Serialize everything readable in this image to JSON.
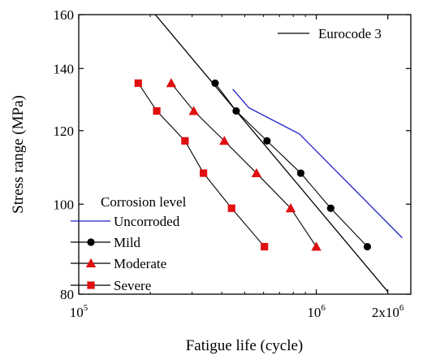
{
  "chart_data": {
    "type": "line",
    "xlabel": "Fatigue life (cycle)",
    "ylabel": "Stress range (MPa)",
    "x_scale": "log",
    "y_scale": "log",
    "xlim": [
      100000,
      2500000
    ],
    "ylim": [
      80,
      160
    ],
    "x_ticks": [
      {
        "value": 100000,
        "base": "10",
        "exp": "5"
      },
      {
        "value": 1000000,
        "base": "10",
        "exp": "6"
      },
      {
        "value": 2000000,
        "base": "2x10",
        "exp": "6"
      }
    ],
    "y_ticks": [
      {
        "value": 80,
        "label": "80"
      },
      {
        "value": 100,
        "label": "100"
      },
      {
        "value": 120,
        "label": "120"
      },
      {
        "value": 140,
        "label": "140"
      },
      {
        "value": 160,
        "label": "160"
      }
    ],
    "legend_title": "Corrosion level",
    "series": [
      {
        "name": "Eurocode 3",
        "color": "#000000",
        "marker": "none",
        "x": [
          210000,
          2000000
        ],
        "y": [
          160,
          80.5
        ]
      },
      {
        "name": "Uncorroded",
        "color": "#1f1fc8",
        "marker": "none",
        "x": [
          445000,
          520000,
          850000,
          2300000
        ],
        "y": [
          133,
          127,
          119,
          92
        ]
      },
      {
        "name": "Mild",
        "color": "#000000",
        "marker": "circle",
        "x": [
          375000,
          460000,
          620000,
          860000,
          1150000,
          1640000
        ],
        "y": [
          135,
          126,
          117,
          108,
          99,
          90
        ]
      },
      {
        "name": "Moderate",
        "color": "#e01010",
        "marker": "triangle",
        "x": [
          245000,
          305000,
          410000,
          560000,
          780000,
          1000000
        ],
        "y": [
          135,
          126,
          117,
          108,
          99,
          90
        ]
      },
      {
        "name": "Severe",
        "color": "#e01010",
        "marker": "square",
        "x": [
          178000,
          213000,
          280000,
          335000,
          440000,
          605000
        ],
        "y": [
          135,
          126,
          117,
          108,
          99,
          90
        ]
      }
    ],
    "legends": {
      "top_right": [
        "Eurocode 3"
      ],
      "bottom_left": [
        "Uncorroded",
        "Mild",
        "Moderate",
        "Severe"
      ]
    },
    "grid": false
  }
}
